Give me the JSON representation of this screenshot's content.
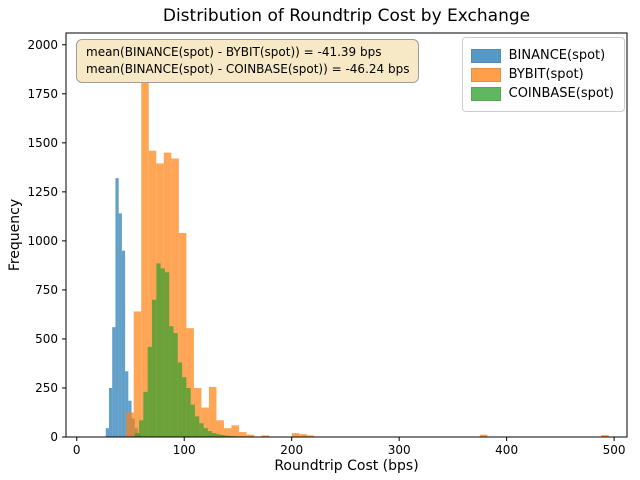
{
  "chart_data": {
    "type": "bar",
    "subtype": "overlaid-histogram",
    "title": "Distribution of Roundtrip Cost by Exchange",
    "xlabel": "Roundtrip Cost (bps)",
    "ylabel": "Frequency",
    "xlim": [
      -10,
      512
    ],
    "ylim": [
      0,
      2060
    ],
    "xticks": [
      0,
      100,
      200,
      300,
      400,
      500
    ],
    "yticks": [
      0,
      250,
      500,
      750,
      1000,
      1250,
      1500,
      1750,
      2000
    ],
    "grid": false,
    "bar_alpha": 0.7,
    "legend_position": "upper right",
    "annotations": [
      "mean(BINANCE(spot) - BYBIT(spot)) = -41.39 bps",
      "mean(BINANCE(spot) - COINBASE(spot)) = -46.24 bps"
    ],
    "series": [
      {
        "name": "BINANCE(spot)",
        "color": "#1f77b4",
        "bin_width": 3,
        "bins": [
          [
            27,
            45
          ],
          [
            30,
            250
          ],
          [
            33,
            560
          ],
          [
            36,
            1320
          ],
          [
            39,
            1140
          ],
          [
            42,
            950
          ],
          [
            45,
            335
          ],
          [
            48,
            185
          ],
          [
            51,
            95
          ],
          [
            54,
            45
          ],
          [
            57,
            18
          ]
        ]
      },
      {
        "name": "BYBIT(spot)",
        "color": "#ff7f0e",
        "bin_width": 7,
        "bins": [
          [
            46,
            125
          ],
          [
            53,
            640
          ],
          [
            60,
            2010
          ],
          [
            67,
            1460
          ],
          [
            74,
            1395
          ],
          [
            81,
            1450
          ],
          [
            88,
            1420
          ],
          [
            95,
            1040
          ],
          [
            102,
            555
          ],
          [
            109,
            250
          ],
          [
            116,
            150
          ],
          [
            123,
            255
          ],
          [
            130,
            85
          ],
          [
            137,
            45
          ],
          [
            144,
            60
          ],
          [
            151,
            25
          ],
          [
            158,
            12
          ],
          [
            172,
            8
          ],
          [
            200,
            20
          ],
          [
            207,
            15
          ],
          [
            214,
            8
          ],
          [
            375,
            12
          ],
          [
            488,
            10
          ]
        ]
      },
      {
        "name": "COINBASE(spot)",
        "color": "#2ca02c",
        "bin_width": 4,
        "bins": [
          [
            54,
            20
          ],
          [
            58,
            85
          ],
          [
            62,
            230
          ],
          [
            66,
            460
          ],
          [
            70,
            700
          ],
          [
            74,
            885
          ],
          [
            78,
            860
          ],
          [
            82,
            840
          ],
          [
            86,
            565
          ],
          [
            90,
            530
          ],
          [
            94,
            380
          ],
          [
            98,
            305
          ],
          [
            102,
            250
          ],
          [
            106,
            165
          ],
          [
            110,
            105
          ],
          [
            114,
            70
          ],
          [
            118,
            45
          ],
          [
            122,
            30
          ],
          [
            126,
            20
          ],
          [
            130,
            14
          ],
          [
            134,
            10
          ],
          [
            138,
            7
          ],
          [
            142,
            5
          ],
          [
            146,
            4
          ],
          [
            150,
            3
          ],
          [
            158,
            2
          ],
          [
            166,
            2
          ]
        ]
      }
    ]
  }
}
